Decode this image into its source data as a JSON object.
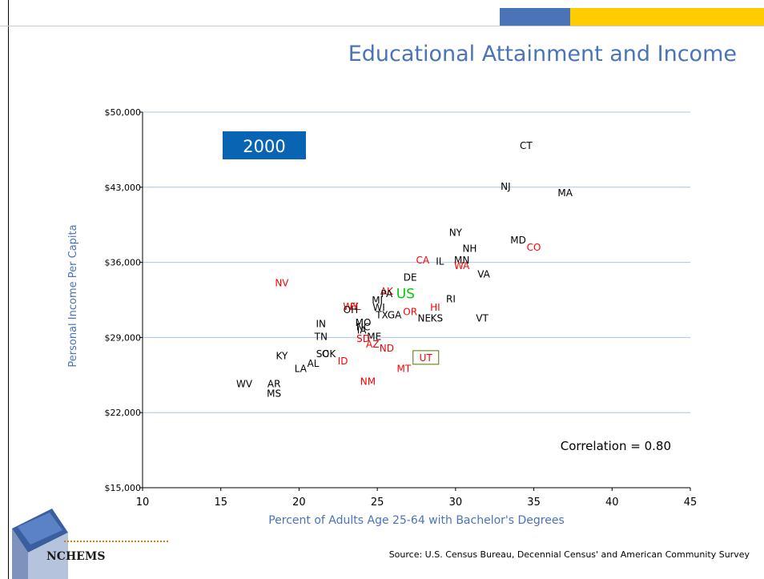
{
  "title": "Educational Attainment and Income",
  "source": "Source:  U.S. Census Bureau, Decennial Census' and American Community Survey",
  "logo_text": "NCHEMS",
  "colors": {
    "accent_blue": "#4a73b8",
    "accent_gold": "#ffcc00",
    "point_black": "#000000",
    "point_red": "#ff0000",
    "point_us": "#00cc00",
    "gridline": "#a9c4e8",
    "year_box": "#0a64b4",
    "ut_box": "#6b8e23"
  },
  "chart_data": {
    "type": "scatter",
    "xlabel": "Percent of Adults Age 25-64 with Bachelor's Degrees",
    "ylabel": "Personal Income Per Capita",
    "xlim": [
      10,
      45
    ],
    "ylim": [
      15000,
      50000
    ],
    "x_ticks": [
      "10",
      "15",
      "20",
      "25",
      "30",
      "35",
      "40",
      "45"
    ],
    "y_ticks": [
      "$15,000",
      "$22,000",
      "$29,000",
      "$36,000",
      "$43,000",
      "$50,000"
    ],
    "grid": "horizontal",
    "year_label": "2000",
    "annotation": "Correlation = 0.80",
    "points": [
      {
        "label": "CT",
        "x": 34.5,
        "y": 46900,
        "color": "black"
      },
      {
        "label": "NJ",
        "x": 33.2,
        "y": 43100,
        "color": "black"
      },
      {
        "label": "MA",
        "x": 37.0,
        "y": 42500,
        "color": "black"
      },
      {
        "label": "NY",
        "x": 30.0,
        "y": 38800,
        "color": "black"
      },
      {
        "label": "MD",
        "x": 34.0,
        "y": 38100,
        "color": "black"
      },
      {
        "label": "CO",
        "x": 35.0,
        "y": 37400,
        "color": "red"
      },
      {
        "label": "NH",
        "x": 30.9,
        "y": 37300,
        "color": "black"
      },
      {
        "label": "CA",
        "x": 27.9,
        "y": 36200,
        "color": "red"
      },
      {
        "label": "IL",
        "x": 29.0,
        "y": 36100,
        "color": "black"
      },
      {
        "label": "MN",
        "x": 30.4,
        "y": 36200,
        "color": "black"
      },
      {
        "label": "WA",
        "x": 30.4,
        "y": 35700,
        "color": "red"
      },
      {
        "label": "VA",
        "x": 31.8,
        "y": 34900,
        "color": "black"
      },
      {
        "label": "DE",
        "x": 27.1,
        "y": 34600,
        "color": "black"
      },
      {
        "label": "NV",
        "x": 18.9,
        "y": 34100,
        "color": "red"
      },
      {
        "label": "AK",
        "x": 25.6,
        "y": 33300,
        "color": "red"
      },
      {
        "label": "PA",
        "x": 25.6,
        "y": 33100,
        "color": "black"
      },
      {
        "label": "US",
        "x": 26.8,
        "y": 33100,
        "color": "us"
      },
      {
        "label": "RI",
        "x": 29.7,
        "y": 32600,
        "color": "black"
      },
      {
        "label": "MI",
        "x": 25.0,
        "y": 32500,
        "color": "black"
      },
      {
        "label": "FL",
        "x": 23.6,
        "y": 31900,
        "color": "red"
      },
      {
        "label": "WY",
        "x": 23.3,
        "y": 31900,
        "color": "red"
      },
      {
        "label": "OH",
        "x": 23.3,
        "y": 31600,
        "color": "black"
      },
      {
        "label": "WI",
        "x": 25.1,
        "y": 31800,
        "color": "black"
      },
      {
        "label": "HI",
        "x": 28.7,
        "y": 31800,
        "color": "red"
      },
      {
        "label": "OR",
        "x": 27.1,
        "y": 31400,
        "color": "red"
      },
      {
        "label": "TX",
        "x": 25.3,
        "y": 31100,
        "color": "black"
      },
      {
        "label": "GA",
        "x": 26.1,
        "y": 31100,
        "color": "black"
      },
      {
        "label": "NE",
        "x": 28.0,
        "y": 30800,
        "color": "black"
      },
      {
        "label": "KS",
        "x": 28.8,
        "y": 30800,
        "color": "black"
      },
      {
        "label": "VT",
        "x": 31.7,
        "y": 30800,
        "color": "black"
      },
      {
        "label": "IN",
        "x": 21.4,
        "y": 30300,
        "color": "black"
      },
      {
        "label": "MO",
        "x": 24.1,
        "y": 30400,
        "color": "black"
      },
      {
        "label": "NC",
        "x": 24.1,
        "y": 30000,
        "color": "black"
      },
      {
        "label": "IA",
        "x": 24.0,
        "y": 29700,
        "color": "black"
      },
      {
        "label": "TN",
        "x": 21.4,
        "y": 29100,
        "color": "black"
      },
      {
        "label": "ME",
        "x": 24.8,
        "y": 29100,
        "color": "black"
      },
      {
        "label": "SD",
        "x": 24.1,
        "y": 28900,
        "color": "red"
      },
      {
        "label": "AZ",
        "x": 24.7,
        "y": 28400,
        "color": "red"
      },
      {
        "label": "ND",
        "x": 25.6,
        "y": 28000,
        "color": "red"
      },
      {
        "label": "KY",
        "x": 18.9,
        "y": 27300,
        "color": "black"
      },
      {
        "label": "SC",
        "x": 21.5,
        "y": 27500,
        "color": "black"
      },
      {
        "label": "OK",
        "x": 21.9,
        "y": 27500,
        "color": "black"
      },
      {
        "label": "UT",
        "x": 28.1,
        "y": 27100,
        "color": "red",
        "boxed": true
      },
      {
        "label": "ID",
        "x": 22.8,
        "y": 26800,
        "color": "red"
      },
      {
        "label": "AL",
        "x": 20.9,
        "y": 26600,
        "color": "black"
      },
      {
        "label": "LA",
        "x": 20.1,
        "y": 26100,
        "color": "black"
      },
      {
        "label": "MT",
        "x": 26.7,
        "y": 26100,
        "color": "red"
      },
      {
        "label": "NM",
        "x": 24.4,
        "y": 24900,
        "color": "red"
      },
      {
        "label": "WV",
        "x": 16.5,
        "y": 24700,
        "color": "black"
      },
      {
        "label": "AR",
        "x": 18.4,
        "y": 24700,
        "color": "black"
      },
      {
        "label": "MS",
        "x": 18.4,
        "y": 23800,
        "color": "black"
      }
    ]
  }
}
